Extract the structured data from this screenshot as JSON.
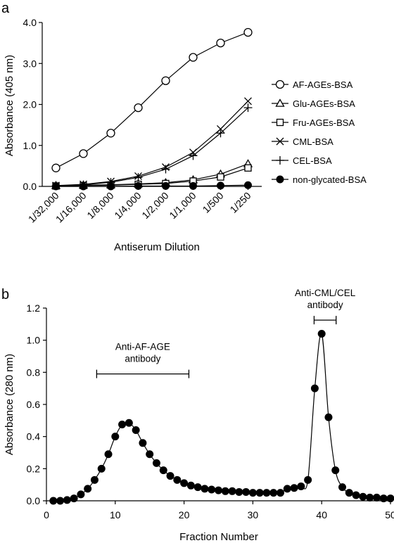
{
  "chart_data": [
    {
      "panel_label": "a",
      "type": "line",
      "categories": [
        "1/32,000",
        "1/16,000",
        "1/8,000",
        "1/4,000",
        "1/2,000",
        "1/1,000",
        "1/500",
        "1/250"
      ],
      "xlabel": "Antiserum Dilution",
      "ylabel": "Absorbance (405 nm)",
      "ylim": [
        0,
        4
      ],
      "yticks": [
        "0.0",
        "1.0",
        "2.0",
        "3.0",
        "4.0"
      ],
      "legend_position": "right",
      "grid": false,
      "series": [
        {
          "name": "AF-AGEs-BSA",
          "marker": "open-circle",
          "values": [
            0.45,
            0.8,
            1.3,
            1.92,
            2.58,
            3.15,
            3.5,
            3.76
          ]
        },
        {
          "name": "Glu-AGEs-BSA",
          "marker": "open-triangle",
          "values": [
            0.02,
            0.03,
            0.04,
            0.06,
            0.09,
            0.16,
            0.3,
            0.55
          ]
        },
        {
          "name": "Fru-AGEs-BSA",
          "marker": "open-square",
          "values": [
            0.01,
            0.02,
            0.03,
            0.05,
            0.07,
            0.13,
            0.23,
            0.45
          ]
        },
        {
          "name": "CML-BSA",
          "marker": "x",
          "values": [
            0.02,
            0.05,
            0.12,
            0.25,
            0.47,
            0.83,
            1.4,
            2.08
          ]
        },
        {
          "name": "CEL-BSA",
          "marker": "plus",
          "values": [
            0.01,
            0.04,
            0.1,
            0.22,
            0.42,
            0.75,
            1.3,
            1.92
          ]
        },
        {
          "name": "non-glycated-BSA",
          "marker": "filled-circle",
          "values": [
            0.0,
            0.0,
            0.0,
            0.01,
            0.01,
            0.01,
            0.02,
            0.03
          ]
        }
      ]
    },
    {
      "panel_label": "b",
      "type": "line",
      "xlabel": "Fraction Number",
      "ylabel": "Absorbance (280 nm)",
      "xlim": [
        0,
        50
      ],
      "ylim": [
        0,
        1.2
      ],
      "xticks": [
        "0",
        "10",
        "20",
        "30",
        "40",
        "50"
      ],
      "yticks": [
        "0.0",
        "0.2",
        "0.4",
        "0.6",
        "0.8",
        "1.0",
        "1.2"
      ],
      "grid": false,
      "annotations": [
        {
          "text": [
            "Anti-AF-AGE",
            "antibody"
          ],
          "range": [
            7.3,
            20.7
          ],
          "y": 0.79
        },
        {
          "text": [
            "Anti-CML/CEL",
            "antibody"
          ],
          "range": [
            38.9,
            42.1
          ],
          "y": 1.125
        }
      ],
      "series": [
        {
          "marker": "filled-circle",
          "x": [
            1,
            2,
            3,
            4,
            5,
            6,
            7,
            8,
            9,
            10,
            11,
            12,
            13,
            14,
            15,
            16,
            17,
            18,
            19,
            20,
            21,
            22,
            23,
            24,
            25,
            26,
            27,
            28,
            29,
            30,
            31,
            32,
            33,
            34,
            35,
            36,
            37,
            38,
            39,
            40,
            41,
            42,
            43,
            44,
            45,
            46,
            47,
            48,
            49,
            50
          ],
          "y": [
            0.0,
            0.0,
            0.005,
            0.015,
            0.04,
            0.075,
            0.13,
            0.2,
            0.29,
            0.4,
            0.475,
            0.485,
            0.44,
            0.36,
            0.29,
            0.235,
            0.19,
            0.155,
            0.13,
            0.11,
            0.095,
            0.085,
            0.075,
            0.07,
            0.065,
            0.06,
            0.06,
            0.055,
            0.055,
            0.05,
            0.05,
            0.05,
            0.05,
            0.05,
            0.075,
            0.08,
            0.09,
            0.13,
            0.7,
            1.04,
            0.52,
            0.19,
            0.085,
            0.05,
            0.035,
            0.025,
            0.02,
            0.02,
            0.015,
            0.015
          ]
        }
      ]
    }
  ]
}
